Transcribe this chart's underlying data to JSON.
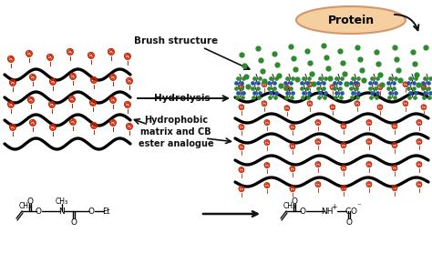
{
  "bg_color": "#ffffff",
  "red_color": "#cc2200",
  "black_color": "#111111",
  "green_color": "#2d8a2d",
  "blue_dot_color": "#2255aa",
  "protein_bg": "#f5cfa0",
  "protein_border": "#d4956a",
  "protein_text": "Protein",
  "brush_text": "Brush structure",
  "hydrolysis_text": "Hydrolysis",
  "hydrophobic_text": "Hydrophobic\nmatrix and CB\nester analogue"
}
